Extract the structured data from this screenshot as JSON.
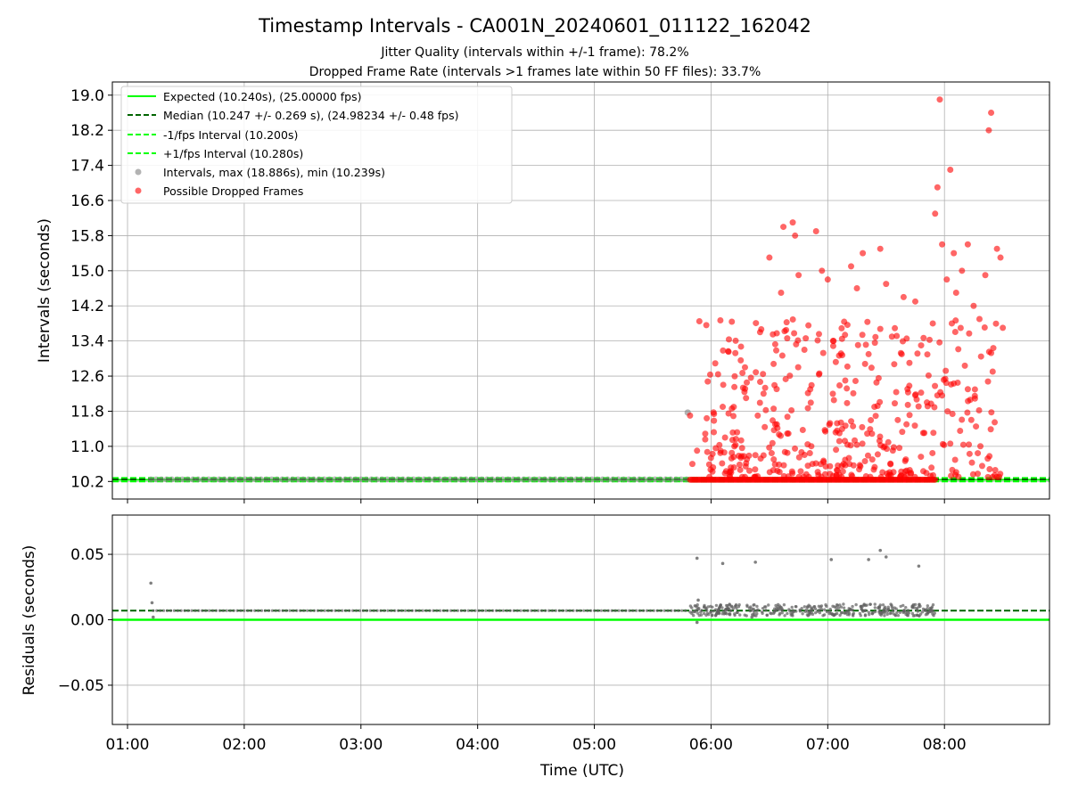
{
  "chart_data": [
    {
      "type": "scatter",
      "title": "Timestamp Intervals - CA001N_20240601_011122_162042",
      "subtitle_1": "Jitter Quality (intervals within +/-1 frame): 78.2%",
      "subtitle_2": "Dropped Frame Rate (intervals >1 frames late within 50 FF files): 33.7%",
      "ylabel": "Intervals (seconds)",
      "x_range_hours": [
        0.87,
        8.9
      ],
      "ylim": [
        9.8,
        19.3
      ],
      "yticks": [
        "10.2",
        "11.0",
        "11.8",
        "12.6",
        "13.4",
        "14.2",
        "15.0",
        "15.8",
        "16.6",
        "17.4",
        "18.2",
        "19.0"
      ],
      "grid": true,
      "legend_position": "upper-left",
      "legend": [
        "Expected (10.240s), (25.00000 fps)",
        "Median (10.247 +/- 0.269 s), (24.98234 +/- 0.48 fps)",
        "-1/fps Interval (10.200s)",
        "+1/fps Interval (10.280s)",
        "Intervals, max (18.886s), min (10.239s)",
        "Possible Dropped Frames"
      ],
      "lines": {
        "expected": 10.24,
        "median": 10.247,
        "minus_one_fps": 10.2,
        "plus_one_fps": 10.28
      },
      "colors": {
        "expected": "#00ff00",
        "median": "#006400",
        "intervals": "#808080",
        "dropped": "#ff0000"
      },
      "intervals_dense_range_hours": [
        1.2,
        5.8
      ],
      "intervals_dense_value": 10.247,
      "intervals_outliers": [
        {
          "x": 5.8,
          "y": 11.77
        }
      ],
      "dropped_frames": [
        {
          "x": 5.82,
          "y": 11.7
        },
        {
          "x": 5.84,
          "y": 10.6
        },
        {
          "x": 5.88,
          "y": 10.9
        },
        {
          "x": 5.9,
          "y": 13.85
        },
        {
          "x": 6.08,
          "y": 13.87
        },
        {
          "x": 6.1,
          "y": 11.9
        },
        {
          "x": 6.12,
          "y": 11.2
        },
        {
          "x": 6.2,
          "y": 11.0
        },
        {
          "x": 6.3,
          "y": 12.1
        },
        {
          "x": 6.38,
          "y": 10.8
        },
        {
          "x": 6.4,
          "y": 11.7
        },
        {
          "x": 6.42,
          "y": 13.6
        },
        {
          "x": 6.45,
          "y": 12.2
        },
        {
          "x": 6.5,
          "y": 15.3
        },
        {
          "x": 6.55,
          "y": 11.5
        },
        {
          "x": 6.6,
          "y": 14.5
        },
        {
          "x": 6.62,
          "y": 16.0
        },
        {
          "x": 6.7,
          "y": 16.1
        },
        {
          "x": 6.72,
          "y": 15.8
        },
        {
          "x": 6.75,
          "y": 14.9
        },
        {
          "x": 6.8,
          "y": 13.2
        },
        {
          "x": 6.85,
          "y": 12.3
        },
        {
          "x": 6.9,
          "y": 15.9
        },
        {
          "x": 6.95,
          "y": 15.0
        },
        {
          "x": 7.0,
          "y": 14.8
        },
        {
          "x": 7.05,
          "y": 13.4
        },
        {
          "x": 7.1,
          "y": 11.3
        },
        {
          "x": 7.15,
          "y": 12.5
        },
        {
          "x": 7.2,
          "y": 15.1
        },
        {
          "x": 7.25,
          "y": 14.6
        },
        {
          "x": 7.3,
          "y": 15.4
        },
        {
          "x": 7.35,
          "y": 13.1
        },
        {
          "x": 7.4,
          "y": 11.9
        },
        {
          "x": 7.45,
          "y": 15.5
        },
        {
          "x": 7.5,
          "y": 14.7
        },
        {
          "x": 7.55,
          "y": 13.5
        },
        {
          "x": 7.6,
          "y": 11.6
        },
        {
          "x": 7.65,
          "y": 14.4
        },
        {
          "x": 7.7,
          "y": 12.9
        },
        {
          "x": 7.75,
          "y": 14.3
        },
        {
          "x": 7.8,
          "y": 13.3
        },
        {
          "x": 7.85,
          "y": 12.0
        },
        {
          "x": 7.9,
          "y": 13.8
        },
        {
          "x": 7.92,
          "y": 16.3
        },
        {
          "x": 7.94,
          "y": 16.9
        },
        {
          "x": 7.96,
          "y": 18.9
        },
        {
          "x": 7.98,
          "y": 15.6
        },
        {
          "x": 8.02,
          "y": 14.8
        },
        {
          "x": 8.05,
          "y": 17.3
        },
        {
          "x": 8.08,
          "y": 15.4
        },
        {
          "x": 8.1,
          "y": 14.5
        },
        {
          "x": 8.15,
          "y": 15.0
        },
        {
          "x": 8.2,
          "y": 15.6
        },
        {
          "x": 8.25,
          "y": 14.2
        },
        {
          "x": 8.3,
          "y": 13.9
        },
        {
          "x": 8.35,
          "y": 14.9
        },
        {
          "x": 8.38,
          "y": 18.2
        },
        {
          "x": 8.4,
          "y": 18.6
        },
        {
          "x": 8.45,
          "y": 15.5
        },
        {
          "x": 8.48,
          "y": 15.3
        },
        {
          "x": 8.5,
          "y": 13.7
        }
      ]
    },
    {
      "type": "scatter",
      "ylabel": "Residuals (seconds)",
      "xlabel": "Time (UTC)",
      "ylim": [
        -0.08,
        0.08
      ],
      "yticks": [
        "0.05",
        "0.00",
        "−0.05"
      ],
      "xticks": [
        "01:00",
        "02:00",
        "03:00",
        "04:00",
        "05:00",
        "06:00",
        "07:00",
        "08:00"
      ],
      "grid": true,
      "zero_line": 0.0,
      "median_line": 0.007,
      "residual_outliers": [
        {
          "x": 1.2,
          "y": 0.028
        },
        {
          "x": 1.21,
          "y": 0.013
        },
        {
          "x": 1.22,
          "y": 0.002
        },
        {
          "x": 5.88,
          "y": 0.047
        },
        {
          "x": 5.89,
          "y": 0.015
        },
        {
          "x": 6.1,
          "y": 0.043
        },
        {
          "x": 6.38,
          "y": 0.044
        },
        {
          "x": 7.03,
          "y": 0.046
        },
        {
          "x": 7.35,
          "y": 0.046
        },
        {
          "x": 7.45,
          "y": 0.053
        },
        {
          "x": 7.5,
          "y": 0.048
        },
        {
          "x": 7.78,
          "y": 0.041
        },
        {
          "x": 5.88,
          "y": -0.002
        },
        {
          "x": 6.35,
          "y": 0.002
        }
      ]
    }
  ]
}
